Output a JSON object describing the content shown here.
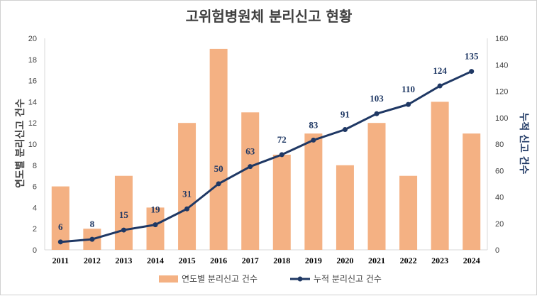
{
  "chart_data": {
    "type": "bar",
    "title": "고위험병원체 분리신고 현황",
    "categories": [
      "2011",
      "2012",
      "2013",
      "2014",
      "2015",
      "2016",
      "2017",
      "2018",
      "2019",
      "2020",
      "2021",
      "2022",
      "2023",
      "2024"
    ],
    "series": [
      {
        "name": "연도별 분리신고 건수",
        "kind": "bar",
        "axis": "left",
        "color": "#f4b183",
        "values": [
          6,
          2,
          7,
          4,
          12,
          19,
          13,
          9,
          11,
          8,
          12,
          7,
          14,
          11
        ]
      },
      {
        "name": "누적 분리신고 건수",
        "kind": "line",
        "axis": "right",
        "color": "#1f3864",
        "values": [
          6,
          8,
          15,
          19,
          31,
          50,
          63,
          72,
          83,
          91,
          103,
          110,
          124,
          135
        ]
      }
    ],
    "ylabel_left": "연도별 분리신고 건수",
    "ylabel_right": "누적 신고 건수",
    "ylim_left": [
      0,
      20
    ],
    "yticks_left": [
      0,
      2,
      4,
      6,
      8,
      10,
      12,
      14,
      16,
      18,
      20
    ],
    "ylim_right": [
      0,
      160
    ],
    "yticks_right": [
      0,
      20,
      40,
      60,
      80,
      100,
      120,
      140,
      160
    ],
    "grid": false,
    "legend": "bottom"
  }
}
